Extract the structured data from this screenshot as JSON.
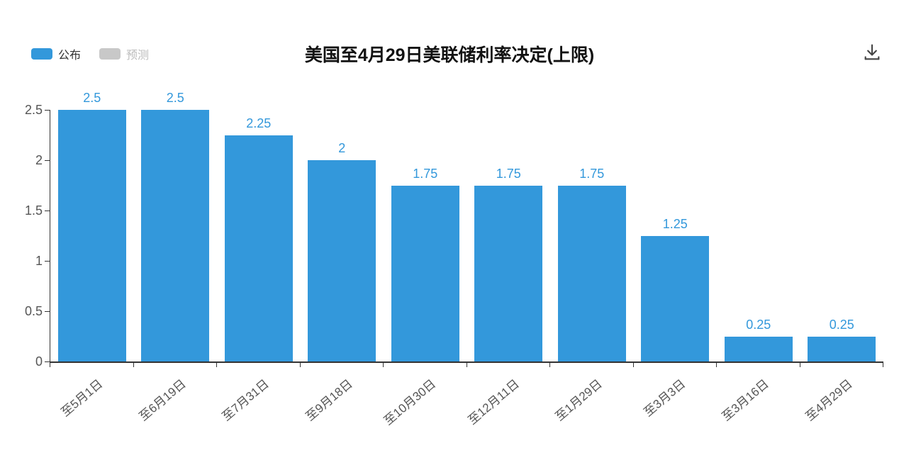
{
  "header": {
    "title": "美国至4月29日美联储利率决定(上限)",
    "legend": {
      "published": {
        "label": "公布",
        "color": "#3398db",
        "active": true
      },
      "forecast": {
        "label": "预测",
        "color": "#c8c8c8",
        "active": false
      }
    },
    "icons": {
      "download": "download-icon"
    }
  },
  "chart_data": {
    "type": "bar",
    "title": "美国至4月29日美联储利率决定(上限)",
    "categories": [
      "至5月1日",
      "至6月19日",
      "至7月31日",
      "至9月18日",
      "至10月30日",
      "至12月11日",
      "至1月29日",
      "至3月3日",
      "至3月16日",
      "至4月29日"
    ],
    "series": [
      {
        "name": "公布",
        "color": "#3398db",
        "values": [
          2.5,
          2.5,
          2.25,
          2,
          1.75,
          1.75,
          1.75,
          1.25,
          0.25,
          0.25
        ]
      },
      {
        "name": "预测",
        "color": "#c8c8c8",
        "values": []
      }
    ],
    "value_labels": [
      "2.5",
      "2.5",
      "2.25",
      "2",
      "1.75",
      "1.75",
      "1.75",
      "1.25",
      "0.25",
      "0.25"
    ],
    "ylim": [
      0,
      2.5
    ],
    "yticks": [
      0,
      0.5,
      1,
      1.5,
      2,
      2.5
    ],
    "ytick_labels": [
      "0",
      "0.5",
      "1",
      "1.5",
      "2",
      "2.5"
    ],
    "grid": false,
    "legend_position": "top-left",
    "x_label_rotation": 40,
    "value_label_color": "#3398db",
    "axis_color": "#333333",
    "tick_label_color": "#555555"
  }
}
